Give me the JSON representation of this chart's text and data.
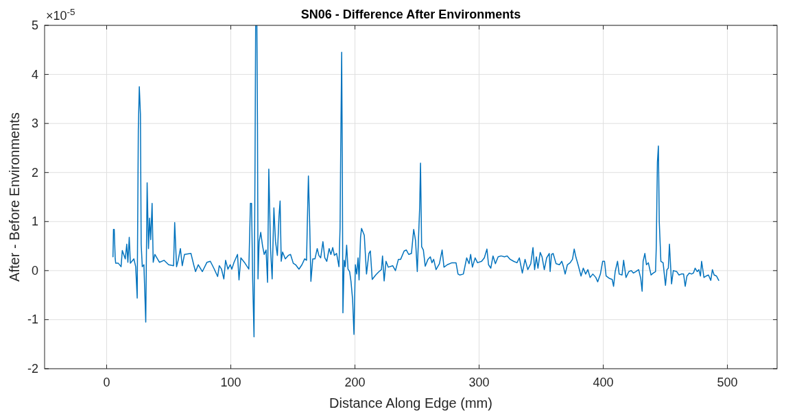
{
  "chart_data": {
    "type": "line",
    "title": "SN06 - Difference After Environments",
    "xlabel": "Distance Along Edge (mm)",
    "ylabel": "After - Before Environments",
    "annotations": [
      "×10$^{-5}$"
    ],
    "xlim": [
      -50,
      540
    ],
    "xticks": [
      0,
      100,
      200,
      300,
      400,
      500
    ],
    "ylim": [
      -2,
      5
    ],
    "yticks": [
      -2,
      -1,
      0,
      1,
      2,
      3,
      4,
      5
    ],
    "grid": true,
    "line_style": "solid",
    "marker": "none",
    "series": [
      {
        "color": "#0072bd",
        "x": [
          5.1,
          5.5,
          6.1,
          6.9,
          7.3,
          9.4,
          11.6,
          12.6,
          15,
          16.2,
          17.1,
          18.2,
          19.1,
          21.9,
          23.4,
          24.6,
          25.5,
          26.3,
          27.2,
          27.8,
          28.7,
          30,
          31.5,
          32.6,
          33.7,
          34.6,
          35.5,
          36.6,
          37.5,
          38.8,
          42.5,
          46.2,
          49.9,
          53.9,
          54.8,
          56.3,
          57.6,
          59.4,
          60.9,
          62.7,
          67.9,
          70.1,
          71.6,
          73.8,
          77.1,
          80.8,
          83.5,
          86.3,
          89.4,
          90.7,
          92.5,
          94.4,
          95.8,
          97.7,
          99.5,
          100.8,
          102.6,
          105.4,
          106.6,
          108.1,
          110.9,
          114.5,
          115.8,
          116.7,
          117.6,
          118.7,
          119.5,
          120,
          121,
          121.5,
          121.9,
          122.8,
          124.1,
          125.6,
          126.9,
          128.4,
          129.6,
          130.6,
          132,
          133.3,
          134.7,
          136,
          137.5,
          138.8,
          139.7,
          140.6,
          141.7,
          143.9,
          146.3,
          148.1,
          150.3,
          152.2,
          154.9,
          157.3,
          159.5,
          161,
          161.7,
          162.5,
          163.6,
          164.5,
          166,
          167.8,
          169.6,
          170.9,
          172.4,
          174.2,
          175.7,
          177.3,
          179.2,
          180.6,
          182.1,
          183.4,
          185.2,
          187.1,
          188,
          188.5,
          189.3,
          189.8,
          190.3,
          191.3,
          192.2,
          193.3,
          194.4,
          195.7,
          196.8,
          198.1,
          199.2,
          200.3,
          201.4,
          202.5,
          203.3,
          204.5,
          205.3,
          207.5,
          209.3,
          211.2,
          212.4,
          213.9,
          216.7,
          219.4,
          221.3,
          222.2,
          223.5,
          225,
          226.8,
          230.4,
          232.6,
          235,
          236.8,
          239.6,
          241.4,
          243.3,
          245.5,
          247.3,
          248.8,
          250.2,
          252.1,
          252.8,
          253.7,
          255.1,
          256.6,
          258.8,
          260.7,
          262,
          263.4,
          265.3,
          268,
          270.2,
          271.7,
          274.4,
          278.1,
          281.4,
          283,
          284.5,
          287.3,
          290,
          291.9,
          293.2,
          294.6,
          296.8,
          298.7,
          302,
          304.2,
          306.3,
          307.6,
          309.4,
          311.2,
          313.1,
          315.3,
          317.7,
          320.4,
          322.6,
          325,
          327.8,
          330.5,
          332.4,
          334.8,
          337,
          339.2,
          341.6,
          343.4,
          344.7,
          346.1,
          347.4,
          349.2,
          350.7,
          352.5,
          354.4,
          356.5,
          357.2,
          358.3,
          359.6,
          362,
          364.7,
          366.6,
          367.8,
          369.3,
          371.1,
          373.3,
          375.2,
          376.6,
          377.9,
          379.7,
          382.1,
          383.9,
          385.8,
          387.6,
          389.4,
          391.6,
          394,
          395.5,
          397.7,
          399.5,
          401,
          402.3,
          405,
          407.2,
          408.3,
          409.6,
          411.5,
          412.8,
          415.1,
          416.4,
          418.3,
          420.6,
          422.5,
          424.3,
          426.2,
          428.5,
          430.2,
          431.3,
          432.1,
          433.5,
          434.8,
          436.3,
          438.5,
          440.3,
          442.1,
          442.7,
          443.6,
          444.4,
          445.1,
          446.4,
          448.2,
          450.1,
          451.3,
          452.4,
          453.3,
          455,
          456.4,
          459.2,
          461,
          462.8,
          464.7,
          466,
          467.4,
          469.3,
          471.1,
          472.6,
          474,
          475.7,
          477,
          478.3,
          479.2,
          481.1,
          482.9,
          484.7,
          486.6,
          487.9,
          489.3,
          491.2,
          493
        ],
        "values": [
          0.28,
          0.84,
          0.84,
          0.24,
          0.15,
          0.15,
          0.08,
          0.41,
          0.24,
          0.54,
          0.17,
          0.68,
          0.15,
          0.24,
          0.08,
          -0.56,
          2.87,
          3.75,
          3.19,
          0.54,
          0.08,
          0.12,
          -1.05,
          1.79,
          0.45,
          1.07,
          0.63,
          1.37,
          0.17,
          0.33,
          0.17,
          0.21,
          0.12,
          0.1,
          0.98,
          0.08,
          0.21,
          0.45,
          0.1,
          0.33,
          0.35,
          0.12,
          -0.02,
          0.12,
          -0.02,
          0.17,
          0.19,
          0.05,
          -0.12,
          0.1,
          0.03,
          -0.17,
          0.21,
          0.03,
          0.12,
          0.03,
          0.17,
          0.33,
          -0.19,
          0.26,
          0.17,
          0.03,
          1.37,
          1.37,
          -0.17,
          -1.35,
          2.17,
          5,
          5,
          2.91,
          -0.17,
          0.59,
          0.78,
          0.5,
          0.33,
          0.42,
          -0.24,
          2.07,
          0.45,
          -0.17,
          1.28,
          0.59,
          0.31,
          1.1,
          1.42,
          0.19,
          0.38,
          0.24,
          0.31,
          0.33,
          0.15,
          0.12,
          0.03,
          0.12,
          0.24,
          0.21,
          1.05,
          1.93,
          0.89,
          -0.22,
          0.24,
          0.24,
          0.45,
          0.31,
          0.26,
          0.59,
          0.26,
          0.19,
          0.45,
          0.33,
          0.47,
          0.31,
          0.35,
          0.08,
          0.87,
          2.4,
          4.45,
          2.24,
          -0.86,
          0.21,
          0.08,
          0.52,
          0.03,
          -0.02,
          -0.22,
          -0.59,
          -1.3,
          0.12,
          -0.07,
          0.26,
          -0.19,
          0.68,
          0.86,
          0.72,
          -0.07,
          0.35,
          0.4,
          -0.18,
          -0.09,
          -0.02,
          0.02,
          0.3,
          -0.21,
          0.19,
          0.07,
          0.1,
          0,
          0.23,
          0.23,
          0.4,
          0.42,
          0.33,
          0.35,
          0.84,
          0.61,
          -0.02,
          1.28,
          2.19,
          0.49,
          0.42,
          0.09,
          0.23,
          0.28,
          0.16,
          0.23,
          0.02,
          0.14,
          0.42,
          0.07,
          0.12,
          0.16,
          0.16,
          -0.07,
          -0.09,
          -0.07,
          0.26,
          0.14,
          0.33,
          0.07,
          0.26,
          0.16,
          0.19,
          0.26,
          0.44,
          0.12,
          0.05,
          0.3,
          0.14,
          0.28,
          0.3,
          0.28,
          0.3,
          0.23,
          0.19,
          0.16,
          0.26,
          -0.05,
          0.23,
          0.02,
          0.14,
          0.47,
          0.02,
          0.28,
          0.05,
          0.37,
          0.28,
          0.02,
          0.26,
          0.35,
          -0.02,
          0.33,
          0.35,
          0.14,
          0.12,
          0.19,
          0.09,
          -0.07,
          0.12,
          0.16,
          0.23,
          0.44,
          0.28,
          0.12,
          -0.11,
          0.05,
          -0.07,
          0.02,
          -0.14,
          -0.07,
          -0.14,
          -0.23,
          -0.07,
          0.19,
          0.19,
          -0.11,
          -0.16,
          -0.18,
          -0.32,
          -0.02,
          0.19,
          -0.07,
          -0.09,
          0.21,
          -0.14,
          -0.02,
          0,
          -0.05,
          -0.02,
          0.02,
          -0.16,
          -0.42,
          0.19,
          0.35,
          0.12,
          0.16,
          -0.09,
          -0.05,
          -0.02,
          0.49,
          2.21,
          2.54,
          1,
          0.19,
          0.16,
          -0.3,
          0.02,
          0.05,
          0.54,
          -0.27,
          0,
          -0.02,
          -0.09,
          -0.07,
          -0.07,
          -0.32,
          -0.11,
          -0.05,
          -0.07,
          -0.05,
          0.05,
          -0.02,
          0.02,
          -0.11,
          0.19,
          -0.14,
          -0.11,
          -0.09,
          -0.2,
          0.02,
          -0.09,
          -0.11,
          -0.2
        ]
      }
    ]
  }
}
